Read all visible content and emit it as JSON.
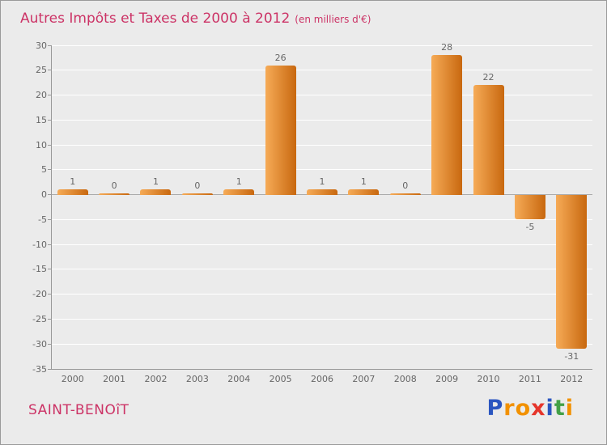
{
  "title": {
    "main": "Autres Impôts et Taxes de 2000 à 2012",
    "unit": "(en milliers d'€)"
  },
  "footer": {
    "location": "SAINT-BENOîT",
    "logo_letters": [
      {
        "ch": "P",
        "color": "#2b56c0"
      },
      {
        "ch": "r",
        "color": "#f29100"
      },
      {
        "ch": "o",
        "color": "#f29100"
      },
      {
        "ch": "x",
        "color": "#e5352b"
      },
      {
        "ch": "i",
        "color": "#2b56c0"
      },
      {
        "ch": "t",
        "color": "#43a047"
      },
      {
        "ch": "i",
        "color": "#f29100"
      }
    ]
  },
  "chart_data": {
    "type": "bar",
    "title": "Autres Impôts et Taxes de 2000 à 2012 (en milliers d'€)",
    "categories": [
      "2000",
      "2001",
      "2002",
      "2003",
      "2004",
      "2005",
      "2006",
      "2007",
      "2008",
      "2009",
      "2010",
      "2011",
      "2012"
    ],
    "values": [
      1,
      0,
      1,
      0,
      1,
      26,
      1,
      1,
      0,
      28,
      22,
      -5,
      -31
    ],
    "xlabel": "",
    "ylabel": "",
    "ylim": [
      -35,
      30
    ],
    "ytick_step": 5,
    "grid": "horizontal-white",
    "legend": "none",
    "bar_color_light": "#f6ab57",
    "bar_color_dark": "#c8680f",
    "label_color": "#666666",
    "accent_color": "#cc3366"
  }
}
